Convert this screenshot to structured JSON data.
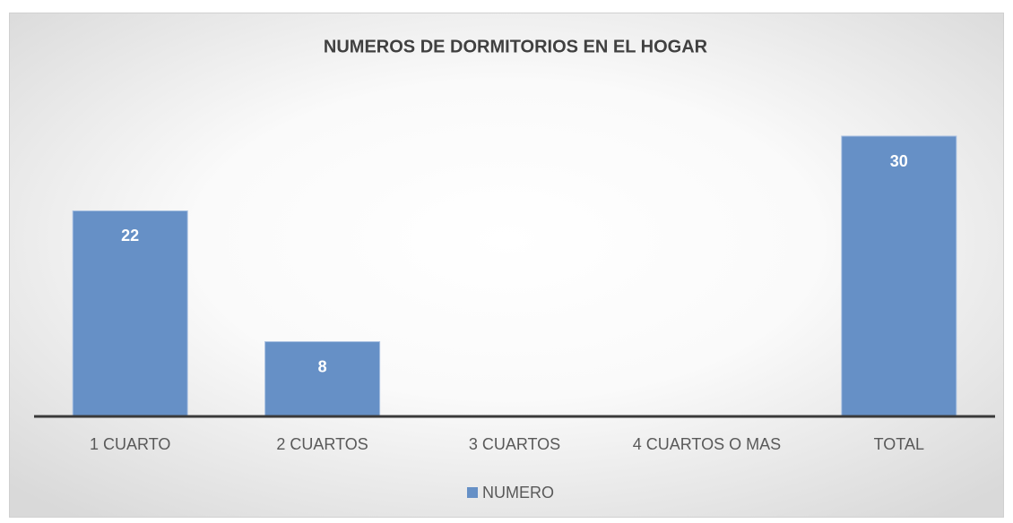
{
  "chart_data": {
    "type": "bar",
    "title": "NUMEROS DE DORMITORIOS EN EL HOGAR",
    "categories": [
      "1 CUARTO",
      "2 CUARTOS",
      "3 CUARTOS",
      "4 CUARTOS O MAS",
      "TOTAL"
    ],
    "series": [
      {
        "name": "NUMERO",
        "color": "#6690c6",
        "values": [
          22,
          8,
          null,
          null,
          30
        ]
      }
    ],
    "legend": "bottom"
  }
}
